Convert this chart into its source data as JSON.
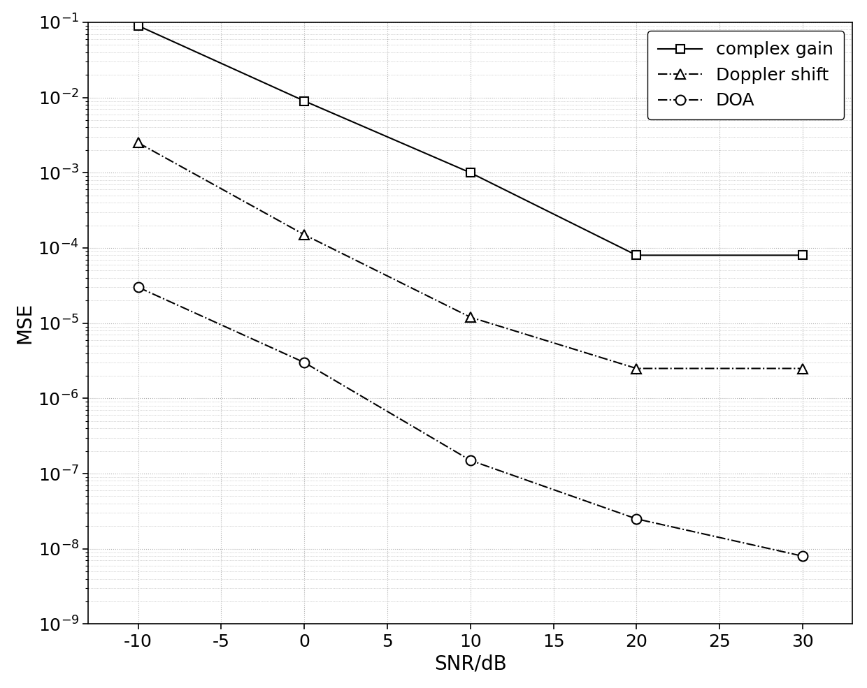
{
  "snr": [
    -10,
    0,
    10,
    20,
    30
  ],
  "complex_gain": [
    0.09,
    0.009,
    0.001,
    8e-05,
    8e-05
  ],
  "doppler_shift": [
    0.0025,
    0.00015,
    1.2e-05,
    2.5e-06,
    2.5e-06
  ],
  "doa": [
    3e-05,
    3e-06,
    1.5e-07,
    2.5e-08,
    8e-09
  ],
  "xlabel": "SNR/dB",
  "ylabel": "MSE",
  "xlim": [
    -13,
    33
  ],
  "ylim_log": [
    -9,
    -1
  ],
  "legend_labels": [
    "complex gain",
    "Doppler shift",
    "DOA"
  ],
  "line_color": "#000000",
  "background_color": "#ffffff",
  "grid_color": "#b0b0b0",
  "xticks": [
    -10,
    -5,
    0,
    5,
    10,
    15,
    20,
    25,
    30
  ],
  "yticks_exp": [
    -9,
    -8,
    -7,
    -6,
    -5,
    -4,
    -3,
    -2,
    -1
  ],
  "tick_fontsize": 18,
  "label_fontsize": 20,
  "legend_fontsize": 18
}
